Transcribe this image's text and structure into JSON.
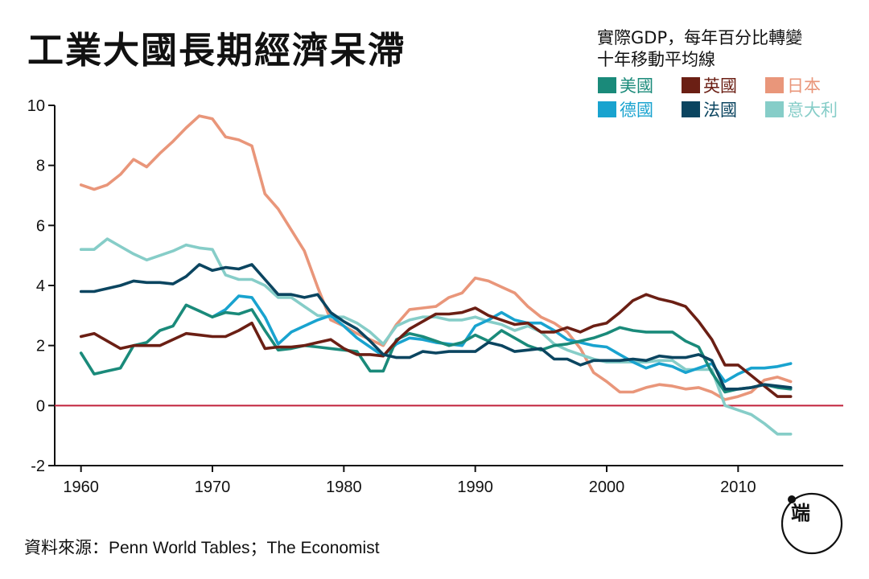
{
  "title": "工業大國長期經濟呆滯",
  "subtitle": {
    "line1": "實際GDP，每年百分比轉變",
    "line2": "十年移動平均線"
  },
  "source": "資料來源：Penn World Tables；The Economist",
  "logo": {
    "icon": "logo-mark",
    "text": "端"
  },
  "colors": {
    "us": "#1a8a7a",
    "uk": "#6b1f14",
    "jp": "#e9967a",
    "de": "#19a3cf",
    "fr": "#0b4560",
    "it": "#86cdc8",
    "zero": "#c0203a"
  },
  "chart_data": {
    "type": "line",
    "title": "工業大國長期經濟呆滯",
    "xlabel": "",
    "ylabel": "",
    "xlim": [
      1958,
      2018
    ],
    "ylim": [
      -2,
      10
    ],
    "xticks": [
      1960,
      1970,
      1980,
      1990,
      2000,
      2010
    ],
    "yticks": [
      -2,
      0,
      2,
      4,
      6,
      8,
      10
    ],
    "zero_line": 0,
    "legend": [
      {
        "key": "us",
        "label": "美國"
      },
      {
        "key": "uk",
        "label": "英國"
      },
      {
        "key": "jp",
        "label": "日本"
      },
      {
        "key": "de",
        "label": "德國"
      },
      {
        "key": "fr",
        "label": "法國"
      },
      {
        "key": "it",
        "label": "意大利"
      }
    ],
    "series": [
      {
        "key": "us",
        "name": "美國",
        "x": [
          1960,
          1961,
          1962,
          1963,
          1964,
          1965,
          1966,
          1967,
          1968,
          1969,
          1970,
          1971,
          1972,
          1973,
          1974,
          1975,
          1976,
          1977,
          1978,
          1979,
          1980,
          1981,
          1982,
          1983,
          1984,
          1985,
          1986,
          1987,
          1988,
          1989,
          1990,
          1991,
          1992,
          1993,
          1994,
          1995,
          1996,
          1997,
          1998,
          1999,
          2000,
          2001,
          2002,
          2003,
          2004,
          2005,
          2006,
          2007,
          2008,
          2009,
          2010,
          2011,
          2012,
          2013,
          2014
        ],
        "values": [
          1.75,
          1.05,
          1.15,
          1.25,
          2.0,
          2.1,
          2.5,
          2.65,
          3.35,
          3.15,
          2.95,
          3.1,
          3.05,
          3.2,
          2.5,
          1.85,
          1.9,
          2.0,
          1.95,
          1.9,
          1.85,
          1.8,
          1.15,
          1.15,
          2.2,
          2.4,
          2.3,
          2.15,
          2.0,
          2.1,
          2.35,
          2.15,
          2.5,
          2.25,
          2.0,
          1.85,
          2.0,
          2.05,
          2.15,
          2.25,
          2.4,
          2.6,
          2.5,
          2.45,
          2.45,
          2.45,
          2.15,
          1.95,
          1.1,
          0.45,
          0.55,
          0.6,
          0.7,
          0.6,
          0.55
        ]
      },
      {
        "key": "uk",
        "name": "英國",
        "x": [
          1960,
          1961,
          1962,
          1963,
          1964,
          1965,
          1966,
          1967,
          1968,
          1969,
          1970,
          1971,
          1972,
          1973,
          1974,
          1975,
          1976,
          1977,
          1978,
          1979,
          1980,
          1981,
          1982,
          1983,
          1984,
          1985,
          1986,
          1987,
          1988,
          1989,
          1990,
          1991,
          1992,
          1993,
          1994,
          1995,
          1996,
          1997,
          1998,
          1999,
          2000,
          2001,
          2002,
          2003,
          2004,
          2005,
          2006,
          2007,
          2008,
          2009,
          2010,
          2011,
          2012,
          2013,
          2014
        ],
        "values": [
          2.3,
          2.4,
          2.15,
          1.9,
          2.0,
          2.0,
          2.0,
          2.2,
          2.4,
          2.35,
          2.3,
          2.3,
          2.5,
          2.75,
          1.9,
          1.95,
          1.95,
          2.0,
          2.1,
          2.2,
          1.9,
          1.7,
          1.7,
          1.65,
          2.15,
          2.55,
          2.8,
          3.05,
          3.05,
          3.1,
          3.25,
          3.0,
          2.85,
          2.7,
          2.75,
          2.45,
          2.45,
          2.6,
          2.45,
          2.65,
          2.75,
          3.1,
          3.5,
          3.7,
          3.55,
          3.45,
          3.3,
          2.8,
          2.2,
          1.35,
          1.35,
          1.0,
          0.65,
          0.3,
          0.3
        ]
      },
      {
        "key": "jp",
        "name": "日本",
        "x": [
          1960,
          1961,
          1962,
          1963,
          1964,
          1965,
          1966,
          1967,
          1968,
          1969,
          1970,
          1971,
          1972,
          1973,
          1974,
          1975,
          1976,
          1977,
          1978,
          1979,
          1980,
          1981,
          1982,
          1983,
          1984,
          1985,
          1986,
          1987,
          1988,
          1989,
          1990,
          1991,
          1992,
          1993,
          1994,
          1995,
          1996,
          1997,
          1998,
          1999,
          2000,
          2001,
          2002,
          2003,
          2004,
          2005,
          2006,
          2007,
          2008,
          2009,
          2010,
          2011,
          2012,
          2013,
          2014
        ],
        "values": [
          7.35,
          7.2,
          7.35,
          7.7,
          8.2,
          7.95,
          8.4,
          8.8,
          9.25,
          9.65,
          9.55,
          8.95,
          8.85,
          8.65,
          7.05,
          6.55,
          5.85,
          5.15,
          3.95,
          2.85,
          2.65,
          2.4,
          2.2,
          2.0,
          2.7,
          3.2,
          3.25,
          3.3,
          3.6,
          3.75,
          4.25,
          4.15,
          3.95,
          3.75,
          3.3,
          2.95,
          2.75,
          2.45,
          1.9,
          1.1,
          0.8,
          0.45,
          0.45,
          0.6,
          0.7,
          0.65,
          0.55,
          0.6,
          0.45,
          0.2,
          0.3,
          0.45,
          0.85,
          0.95,
          0.8
        ]
      },
      {
        "key": "de",
        "name": "德國",
        "x": [
          1970,
          1971,
          1972,
          1973,
          1974,
          1975,
          1976,
          1977,
          1978,
          1979,
          1980,
          1981,
          1982,
          1983,
          1984,
          1985,
          1986,
          1987,
          1988,
          1989,
          1990,
          1991,
          1992,
          1993,
          1994,
          1995,
          1996,
          1997,
          1998,
          1999,
          2000,
          2001,
          2002,
          2003,
          2004,
          2005,
          2006,
          2007,
          2008,
          2009,
          2010,
          2011,
          2012,
          2013,
          2014
        ],
        "values": [
          2.95,
          3.2,
          3.65,
          3.6,
          2.95,
          2.05,
          2.45,
          2.65,
          2.85,
          3.0,
          2.65,
          2.25,
          1.95,
          1.65,
          2.05,
          2.25,
          2.2,
          2.1,
          2.05,
          2.0,
          2.65,
          2.85,
          3.1,
          2.85,
          2.75,
          2.75,
          2.5,
          2.2,
          2.1,
          2.0,
          1.95,
          1.7,
          1.45,
          1.25,
          1.4,
          1.3,
          1.1,
          1.25,
          1.4,
          0.8,
          1.05,
          1.25,
          1.25,
          1.3,
          1.4
        ]
      },
      {
        "key": "fr",
        "name": "法國",
        "x": [
          1960,
          1961,
          1962,
          1963,
          1964,
          1965,
          1966,
          1967,
          1968,
          1969,
          1970,
          1971,
          1972,
          1973,
          1974,
          1975,
          1976,
          1977,
          1978,
          1979,
          1980,
          1981,
          1982,
          1983,
          1984,
          1985,
          1986,
          1987,
          1988,
          1989,
          1990,
          1991,
          1992,
          1993,
          1994,
          1995,
          1996,
          1997,
          1998,
          1999,
          2000,
          2001,
          2002,
          2003,
          2004,
          2005,
          2006,
          2007,
          2008,
          2009,
          2010,
          2011,
          2012,
          2013,
          2014
        ],
        "values": [
          3.8,
          3.8,
          3.9,
          4.0,
          4.15,
          4.1,
          4.1,
          4.05,
          4.3,
          4.7,
          4.5,
          4.6,
          4.55,
          4.7,
          4.2,
          3.7,
          3.7,
          3.6,
          3.7,
          3.1,
          2.8,
          2.55,
          2.15,
          1.7,
          1.6,
          1.6,
          1.8,
          1.75,
          1.8,
          1.8,
          1.8,
          2.1,
          2.0,
          1.8,
          1.85,
          1.9,
          1.55,
          1.55,
          1.35,
          1.5,
          1.5,
          1.5,
          1.55,
          1.5,
          1.65,
          1.6,
          1.6,
          1.7,
          1.5,
          0.55,
          0.55,
          0.6,
          0.7,
          0.65,
          0.6
        ]
      },
      {
        "key": "it",
        "name": "意大利",
        "x": [
          1960,
          1961,
          1962,
          1963,
          1964,
          1965,
          1966,
          1967,
          1968,
          1969,
          1970,
          1971,
          1972,
          1973,
          1974,
          1975,
          1976,
          1977,
          1978,
          1979,
          1980,
          1981,
          1982,
          1983,
          1984,
          1985,
          1986,
          1987,
          1988,
          1989,
          1990,
          1991,
          1992,
          1993,
          1994,
          1995,
          1996,
          1997,
          1998,
          1999,
          2000,
          2001,
          2002,
          2003,
          2004,
          2005,
          2006,
          2007,
          2008,
          2009,
          2010,
          2011,
          2012,
          2013,
          2014
        ],
        "values": [
          5.2,
          5.2,
          5.55,
          5.3,
          5.05,
          4.85,
          5.0,
          5.15,
          5.35,
          5.25,
          5.2,
          4.35,
          4.2,
          4.2,
          4.0,
          3.6,
          3.6,
          3.3,
          3.0,
          2.95,
          2.95,
          2.75,
          2.45,
          2.05,
          2.65,
          2.85,
          2.95,
          2.95,
          2.85,
          2.85,
          2.95,
          2.8,
          2.7,
          2.5,
          2.65,
          2.45,
          2.05,
          1.85,
          1.7,
          1.55,
          1.45,
          1.45,
          1.45,
          1.45,
          1.5,
          1.5,
          1.2,
          1.2,
          1.2,
          0.0,
          -0.15,
          -0.3,
          -0.6,
          -0.95,
          -0.95
        ]
      }
    ]
  }
}
